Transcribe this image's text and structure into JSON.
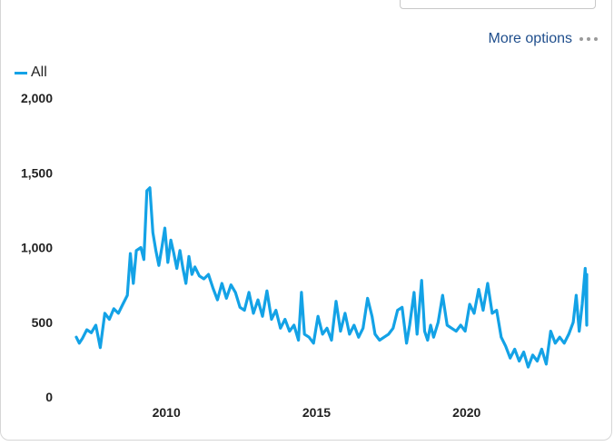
{
  "header": {
    "title_partial": ""
  },
  "toolbar": {
    "more_options_label": "More options"
  },
  "colors": {
    "accent": "#13a2e6",
    "link": "#1f4e8c"
  },
  "chart_data": {
    "type": "line",
    "title": "",
    "xlabel": "",
    "ylabel": "",
    "legend": {
      "position": "top-left",
      "entries": [
        "All"
      ]
    },
    "grid": false,
    "xlim": [
      2007.0,
      2024.0
    ],
    "ylim": [
      0,
      2000
    ],
    "x_ticks": [
      2010,
      2015,
      2020
    ],
    "y_ticks": [
      0,
      500,
      1000,
      1500,
      2000
    ],
    "y_tick_labels": [
      "0",
      "500",
      "1,000",
      "1,500",
      "2,000"
    ],
    "series": [
      {
        "name": "All",
        "color": "#13a2e6",
        "points": [
          [
            2007.0,
            400
          ],
          [
            2007.1,
            360
          ],
          [
            2007.2,
            390
          ],
          [
            2007.35,
            450
          ],
          [
            2007.5,
            430
          ],
          [
            2007.65,
            480
          ],
          [
            2007.8,
            330
          ],
          [
            2007.95,
            560
          ],
          [
            2008.1,
            520
          ],
          [
            2008.25,
            590
          ],
          [
            2008.4,
            560
          ],
          [
            2008.55,
            620
          ],
          [
            2008.7,
            680
          ],
          [
            2008.8,
            960
          ],
          [
            2008.9,
            760
          ],
          [
            2009.0,
            980
          ],
          [
            2009.15,
            1000
          ],
          [
            2009.25,
            920
          ],
          [
            2009.35,
            1380
          ],
          [
            2009.45,
            1400
          ],
          [
            2009.55,
            1100
          ],
          [
            2009.65,
            980
          ],
          [
            2009.75,
            880
          ],
          [
            2009.85,
            1000
          ],
          [
            2009.95,
            1130
          ],
          [
            2010.05,
            900
          ],
          [
            2010.15,
            1050
          ],
          [
            2010.25,
            960
          ],
          [
            2010.35,
            860
          ],
          [
            2010.45,
            980
          ],
          [
            2010.55,
            860
          ],
          [
            2010.65,
            760
          ],
          [
            2010.75,
            940
          ],
          [
            2010.85,
            820
          ],
          [
            2010.95,
            870
          ],
          [
            2011.1,
            810
          ],
          [
            2011.25,
            790
          ],
          [
            2011.4,
            820
          ],
          [
            2011.55,
            730
          ],
          [
            2011.7,
            650
          ],
          [
            2011.85,
            760
          ],
          [
            2012.0,
            660
          ],
          [
            2012.15,
            750
          ],
          [
            2012.3,
            700
          ],
          [
            2012.45,
            600
          ],
          [
            2012.6,
            580
          ],
          [
            2012.75,
            700
          ],
          [
            2012.9,
            560
          ],
          [
            2013.05,
            650
          ],
          [
            2013.2,
            540
          ],
          [
            2013.35,
            710
          ],
          [
            2013.5,
            520
          ],
          [
            2013.65,
            580
          ],
          [
            2013.8,
            460
          ],
          [
            2013.95,
            520
          ],
          [
            2014.1,
            440
          ],
          [
            2014.25,
            480
          ],
          [
            2014.4,
            380
          ],
          [
            2014.5,
            700
          ],
          [
            2014.6,
            420
          ],
          [
            2014.75,
            400
          ],
          [
            2014.9,
            360
          ],
          [
            2015.05,
            540
          ],
          [
            2015.2,
            420
          ],
          [
            2015.35,
            460
          ],
          [
            2015.5,
            380
          ],
          [
            2015.65,
            640
          ],
          [
            2015.8,
            440
          ],
          [
            2015.95,
            560
          ],
          [
            2016.1,
            420
          ],
          [
            2016.25,
            480
          ],
          [
            2016.4,
            400
          ],
          [
            2016.55,
            460
          ],
          [
            2016.7,
            660
          ],
          [
            2016.85,
            540
          ],
          [
            2016.95,
            420
          ],
          [
            2017.1,
            380
          ],
          [
            2017.25,
            400
          ],
          [
            2017.4,
            420
          ],
          [
            2017.55,
            460
          ],
          [
            2017.7,
            580
          ],
          [
            2017.85,
            600
          ],
          [
            2018.0,
            360
          ],
          [
            2018.1,
            480
          ],
          [
            2018.25,
            700
          ],
          [
            2018.35,
            420
          ],
          [
            2018.5,
            780
          ],
          [
            2018.6,
            440
          ],
          [
            2018.7,
            380
          ],
          [
            2018.8,
            480
          ],
          [
            2018.9,
            400
          ],
          [
            2019.05,
            500
          ],
          [
            2019.2,
            680
          ],
          [
            2019.35,
            480
          ],
          [
            2019.5,
            460
          ],
          [
            2019.65,
            440
          ],
          [
            2019.8,
            480
          ],
          [
            2019.95,
            440
          ],
          [
            2020.1,
            620
          ],
          [
            2020.25,
            560
          ],
          [
            2020.4,
            720
          ],
          [
            2020.55,
            580
          ],
          [
            2020.7,
            760
          ],
          [
            2020.85,
            560
          ],
          [
            2021.0,
            580
          ],
          [
            2021.15,
            400
          ],
          [
            2021.3,
            340
          ],
          [
            2021.45,
            260
          ],
          [
            2021.6,
            320
          ],
          [
            2021.75,
            240
          ],
          [
            2021.9,
            300
          ],
          [
            2022.05,
            200
          ],
          [
            2022.2,
            280
          ],
          [
            2022.35,
            240
          ],
          [
            2022.5,
            320
          ],
          [
            2022.65,
            220
          ],
          [
            2022.8,
            440
          ],
          [
            2022.95,
            360
          ],
          [
            2023.1,
            400
          ],
          [
            2023.25,
            360
          ],
          [
            2023.4,
            420
          ],
          [
            2023.55,
            500
          ],
          [
            2023.65,
            680
          ],
          [
            2023.75,
            440
          ],
          [
            2023.85,
            620
          ],
          [
            2023.95,
            860
          ],
          [
            2024.0,
            480
          ],
          [
            2024.0,
            820
          ]
        ]
      }
    ]
  }
}
